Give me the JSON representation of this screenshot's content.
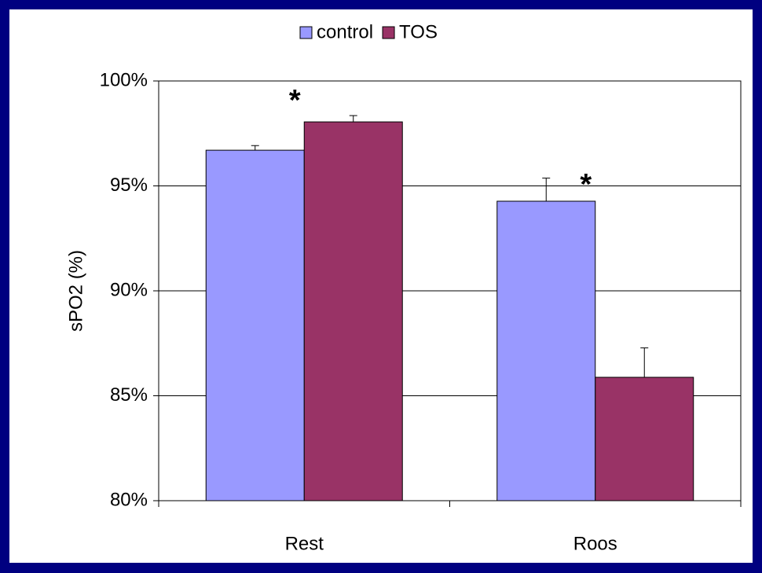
{
  "chart_data": {
    "type": "bar",
    "y_label": "sPO2 (%)",
    "categories": [
      "Rest",
      "Roos"
    ],
    "series": [
      {
        "name": "control",
        "color": "#9999ff",
        "values": [
          96.7,
          94.27
        ],
        "errors": [
          0.22,
          1.1
        ]
      },
      {
        "name": "TOS",
        "color": "#993366",
        "values": [
          98.05,
          85.88
        ],
        "errors": [
          0.3,
          1.4
        ]
      }
    ],
    "ylim": [
      80,
      100
    ],
    "yticks": [
      {
        "value": 80,
        "label": "80%"
      },
      {
        "value": 85,
        "label": "85%"
      },
      {
        "value": 90,
        "label": "90%"
      },
      {
        "value": 95,
        "label": "95%"
      },
      {
        "value": 100,
        "label": "100%"
      }
    ],
    "grid": true,
    "legend": "top",
    "annotations": [
      "*",
      "*"
    ]
  }
}
